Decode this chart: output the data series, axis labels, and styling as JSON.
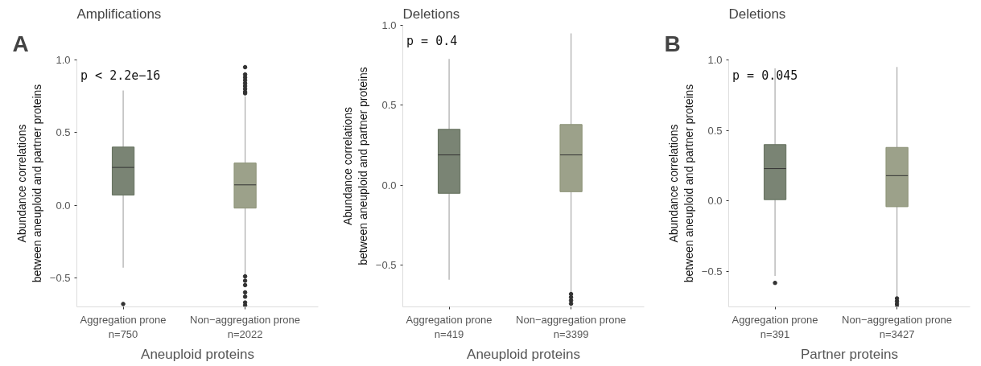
{
  "chart_data": [
    {
      "type": "box",
      "title": "Amplifications",
      "ylabel": "Abundance correlations\nbetween aneuploid and partner proteins",
      "xlabel": "Aneuploid proteins",
      "categories": [
        "Aggregation prone\nn=750",
        "Non−aggregation prone\nn=2022"
      ],
      "colors": [
        "#636f5c",
        "#8b9175"
      ],
      "boxes": [
        {
          "low": -0.43,
          "q1": 0.07,
          "median": 0.26,
          "q3": 0.4,
          "high": 0.79,
          "outliers": [
            -0.68
          ]
        },
        {
          "low": -0.48,
          "q1": -0.02,
          "median": 0.14,
          "q3": 0.29,
          "high": 0.75,
          "outliers": [
            0.95,
            0.9,
            0.88,
            0.86,
            0.84,
            0.82,
            0.8,
            0.78,
            0.77,
            -0.49,
            -0.52,
            -0.55,
            -0.6,
            -0.63,
            -0.67,
            -0.69
          ]
        }
      ],
      "ylim": [
        -0.7,
        1.0
      ],
      "yticks": [
        {
          "value": -0.5,
          "label": "−0.5"
        },
        {
          "value": 0,
          "label": "0.0"
        },
        {
          "value": 0.5,
          "label": "0.5"
        },
        {
          "value": 1,
          "label": "1.0"
        }
      ],
      "grid": false,
      "annotations": [
        "A",
        "p < 2.2e−16"
      ]
    },
    {
      "type": "box",
      "title": "Deletions",
      "ylabel": "Abundance correlations\nbetween aneuploid and partner proteins",
      "xlabel": "Aneuploid proteins",
      "categories": [
        "Aggregation prone\nn=419",
        "Non−aggregation prone\nn=3399"
      ],
      "colors": [
        "#636f5c",
        "#8b9175"
      ],
      "boxes": [
        {
          "low": -0.59,
          "q1": -0.05,
          "median": 0.19,
          "q3": 0.35,
          "high": 0.79
        },
        {
          "low": -0.67,
          "q1": -0.04,
          "median": 0.19,
          "q3": 0.38,
          "high": 0.95,
          "outliers": [
            -0.68,
            -0.7,
            -0.72,
            -0.74
          ]
        }
      ],
      "ylim": [
        -0.76,
        1.0
      ],
      "yticks": [
        {
          "value": -0.5,
          "label": "−0.5"
        },
        {
          "value": 0,
          "label": "0.0"
        },
        {
          "value": 0.5,
          "label": "0.5"
        },
        {
          "value": 1,
          "label": "1.0"
        }
      ],
      "grid": false,
      "annotations": [
        "p = 0.4"
      ]
    },
    {
      "type": "box",
      "title": "Deletions",
      "ylabel": "Abundance correlations\nbetween aneuploid and partner proteins",
      "xlabel": "Partner proteins",
      "categories": [
        "Aggregation prone\nn=391",
        "Non−aggregation prone\nn=3427"
      ],
      "colors": [
        "#636f5c",
        "#8b9175"
      ],
      "boxes": [
        {
          "low": -0.53,
          "q1": 0.01,
          "median": 0.23,
          "q3": 0.4,
          "high": 0.94,
          "outliers": [
            -0.58
          ]
        },
        {
          "low": -0.68,
          "q1": -0.04,
          "median": 0.18,
          "q3": 0.38,
          "high": 0.95,
          "outliers": [
            -0.69,
            -0.71,
            -0.73,
            -0.75
          ]
        }
      ],
      "ylim": [
        -0.75,
        1.0
      ],
      "yticks": [
        {
          "value": -0.5,
          "label": "−0.5"
        },
        {
          "value": 0,
          "label": "0.0"
        },
        {
          "value": 0.5,
          "label": "0.5"
        },
        {
          "value": 1,
          "label": "1.0"
        }
      ],
      "grid": false,
      "annotations": [
        "B",
        "p = 0.045"
      ]
    }
  ]
}
